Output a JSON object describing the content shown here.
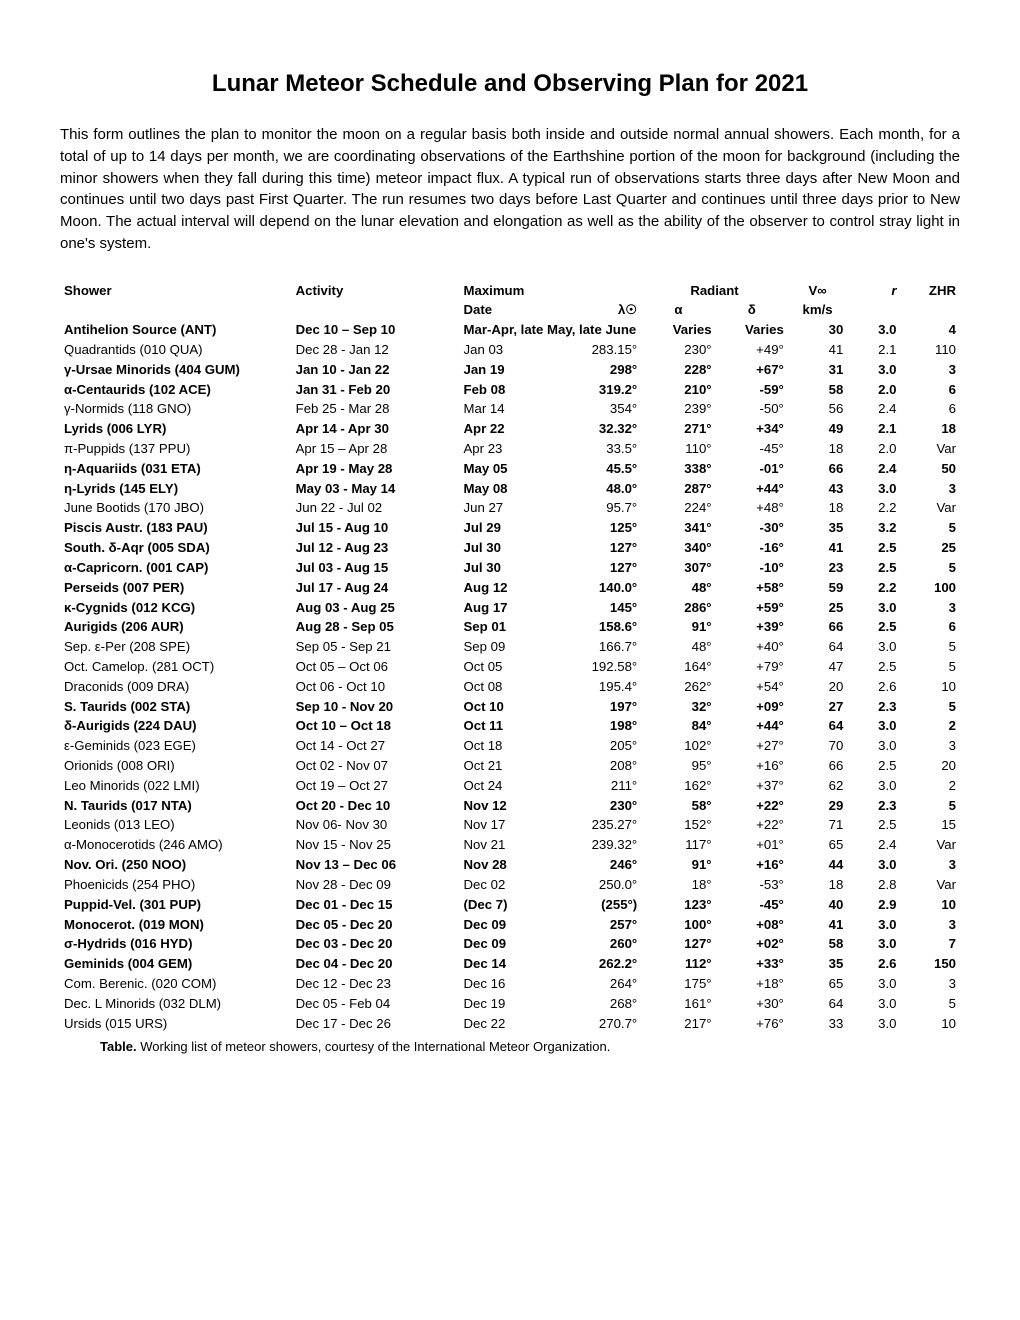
{
  "title": "Lunar Meteor Schedule and Observing Plan for 2021",
  "intro": "This form outlines the plan to monitor the moon on a regular basis both inside and outside normal annual showers. Each month, for a total of up to 14 days per month, we are coordinating observations of the Earthshine portion of the moon for background (including the minor showers when they fall during this time) meteor impact flux. A typical run of observations starts three days after New Moon and continues until two days past First Quarter. The run resumes two days before Last Quarter and continues until three days prior to New Moon. The actual interval will depend on the lunar elevation and elongation as well as the ability of the observer to control stray light in one's system.",
  "header": {
    "shower": "Shower",
    "activity": "Activity",
    "maximum": "Maximum",
    "max_date": "Date",
    "max_lambda": "λ☉",
    "radiant": "Radiant",
    "alpha": "α",
    "delta": "δ",
    "vinf": "V∞",
    "vinf_unit": "km/s",
    "r": "r",
    "zhr": "ZHR"
  },
  "caption_bold": "Table.",
  "caption_rest": " Working list of meteor showers, courtesy of the International Meteor Organization.",
  "rows": [
    {
      "bold": true,
      "shower": "Antihelion Source (ANT)",
      "activity": "Dec 10 – Sep 10",
      "maxdate": "Mar-Apr, late May, late June",
      "lambda": "",
      "alpha": "Varies",
      "delta": "Varies",
      "vinf": "30",
      "r": "3.0",
      "zhr": "4",
      "span": true
    },
    {
      "bold": false,
      "shower": "Quadrantids (010 QUA)",
      "activity": "Dec 28 - Jan 12",
      "maxdate": "Jan 03",
      "lambda": "283.15°",
      "alpha": "230°",
      "delta": "+49°",
      "vinf": "41",
      "r": "2.1",
      "zhr": "110"
    },
    {
      "bold": true,
      "shower": "γ-Ursae Minorids (404 GUM)",
      "activity": "Jan 10 - Jan 22",
      "maxdate": "Jan 19",
      "lambda": "298°",
      "alpha": "228°",
      "delta": "+67°",
      "vinf": "31",
      "r": "3.0",
      "zhr": "3"
    },
    {
      "bold": true,
      "shower": "α-Centaurids (102 ACE)",
      "activity": "Jan 31 - Feb 20",
      "maxdate": "Feb 08",
      "lambda": "319.2°",
      "alpha": "210°",
      "delta": "-59°",
      "vinf": "58",
      "r": "2.0",
      "zhr": "6"
    },
    {
      "bold": false,
      "shower": "γ-Normids (118 GNO)",
      "activity": "Feb 25 - Mar 28",
      "maxdate": "Mar 14",
      "lambda": "354°",
      "alpha": "239°",
      "delta": "-50°",
      "vinf": "56",
      "r": "2.4",
      "zhr": "6"
    },
    {
      "bold": true,
      "shower": "Lyrids (006 LYR)",
      "activity": "Apr 14 - Apr 30",
      "maxdate": "Apr 22",
      "lambda": "32.32°",
      "alpha": "271°",
      "delta": "+34°",
      "vinf": "49",
      "r": "2.1",
      "zhr": "18"
    },
    {
      "bold": false,
      "shower": "π-Puppids (137 PPU)",
      "activity": "Apr 15 – Apr 28",
      "maxdate": "Apr 23",
      "lambda": "33.5°",
      "alpha": "110°",
      "delta": "-45°",
      "vinf": "18",
      "r": "2.0",
      "zhr": "Var"
    },
    {
      "bold": true,
      "shower": "η-Aquariids (031 ETA)",
      "activity": "Apr 19 - May 28",
      "maxdate": "May 05",
      "lambda": "45.5°",
      "alpha": "338°",
      "delta": "-01°",
      "vinf": "66",
      "r": "2.4",
      "zhr": "50"
    },
    {
      "bold": true,
      "shower": "η-Lyrids (145 ELY)",
      "activity": "May 03 - May 14",
      "maxdate": "May 08",
      "lambda": "48.0°",
      "alpha": "287°",
      "delta": "+44°",
      "vinf": "43",
      "r": "3.0",
      "zhr": "3"
    },
    {
      "bold": false,
      "shower": "June Bootids (170 JBO)",
      "activity": "Jun 22 - Jul 02",
      "maxdate": "Jun 27",
      "lambda": "95.7°",
      "alpha": "224°",
      "delta": "+48°",
      "vinf": "18",
      "r": "2.2",
      "zhr": "Var"
    },
    {
      "bold": true,
      "shower": "Piscis Austr. (183 PAU)",
      "activity": "Jul 15 - Aug 10",
      "maxdate": "Jul 29",
      "lambda": "125°",
      "alpha": "341°",
      "delta": "-30°",
      "vinf": "35",
      "r": "3.2",
      "zhr": "5"
    },
    {
      "bold": true,
      "shower": "South. δ-Aqr (005 SDA)",
      "activity": "Jul 12 - Aug 23",
      "maxdate": "Jul 30",
      "lambda": "127°",
      "alpha": "340°",
      "delta": "-16°",
      "vinf": "41",
      "r": "2.5",
      "zhr": "25"
    },
    {
      "bold": true,
      "shower": "α-Capricorn. (001 CAP)",
      "activity": "Jul 03 - Aug 15",
      "maxdate": "Jul 30",
      "lambda": "127°",
      "alpha": "307°",
      "delta": "-10°",
      "vinf": "23",
      "r": "2.5",
      "zhr": "5"
    },
    {
      "bold": true,
      "shower": "Perseids (007 PER)",
      "activity": "Jul 17 - Aug 24",
      "maxdate": "Aug 12",
      "lambda": "140.0°",
      "alpha": "48°",
      "delta": "+58°",
      "vinf": "59",
      "r": "2.2",
      "zhr": "100"
    },
    {
      "bold": true,
      "shower": "κ-Cygnids (012 KCG)",
      "activity": "Aug 03 - Aug 25",
      "maxdate": "Aug 17",
      "lambda": "145°",
      "alpha": "286°",
      "delta": "+59°",
      "vinf": "25",
      "r": "3.0",
      "zhr": "3"
    },
    {
      "bold": true,
      "shower": "Aurigids (206 AUR)",
      "activity": "Aug 28 - Sep 05",
      "maxdate": "Sep 01",
      "lambda": "158.6°",
      "alpha": "91°",
      "delta": "+39°",
      "vinf": "66",
      "r": "2.5",
      "zhr": "6"
    },
    {
      "bold": false,
      "shower": "Sep. ε-Per (208 SPE)",
      "activity": "Sep 05 - Sep 21",
      "maxdate": "Sep 09",
      "lambda": "166.7°",
      "alpha": "48°",
      "delta": "+40°",
      "vinf": "64",
      "r": "3.0",
      "zhr": "5"
    },
    {
      "bold": false,
      "shower": "Oct. Camelop. (281 OCT)",
      "activity": "Oct 05 – Oct 06",
      "maxdate": "Oct 05",
      "lambda": "192.58°",
      "alpha": "164°",
      "delta": "+79°",
      "vinf": "47",
      "r": "2.5",
      "zhr": "5"
    },
    {
      "bold": false,
      "shower": "Draconids (009 DRA)",
      "activity": "Oct 06 - Oct 10",
      "maxdate": "Oct 08",
      "lambda": "195.4°",
      "alpha": "262°",
      "delta": "+54°",
      "vinf": "20",
      "r": "2.6",
      "zhr": "10"
    },
    {
      "bold": true,
      "shower": "S. Taurids (002 STA)",
      "activity": "Sep 10 - Nov 20",
      "maxdate": "Oct 10",
      "lambda": "197°",
      "alpha": "32°",
      "delta": "+09°",
      "vinf": "27",
      "r": "2.3",
      "zhr": "5"
    },
    {
      "bold": true,
      "shower": "δ-Aurigids (224 DAU)",
      "activity": "Oct 10 – Oct 18",
      "maxdate": "Oct 11",
      "lambda": "198°",
      "alpha": "84°",
      "delta": "+44°",
      "vinf": "64",
      "r": "3.0",
      "zhr": "2"
    },
    {
      "bold": false,
      "shower": "ε-Geminids (023 EGE)",
      "activity": "Oct 14 - Oct 27",
      "maxdate": "Oct 18",
      "lambda": "205°",
      "alpha": "102°",
      "delta": "+27°",
      "vinf": "70",
      "r": "3.0",
      "zhr": "3"
    },
    {
      "bold": false,
      "shower": "Orionids (008 ORI)",
      "activity": "Oct 02 - Nov 07",
      "maxdate": "Oct 21",
      "lambda": "208°",
      "alpha": "95°",
      "delta": "+16°",
      "vinf": "66",
      "r": "2.5",
      "zhr": "20"
    },
    {
      "bold": false,
      "shower": "Leo Minorids (022 LMI)",
      "activity": "Oct 19 – Oct 27",
      "maxdate": "Oct 24",
      "lambda": "211°",
      "alpha": "162°",
      "delta": "+37°",
      "vinf": "62",
      "r": "3.0",
      "zhr": "2"
    },
    {
      "bold": true,
      "shower": "N. Taurids (017 NTA)",
      "activity": "Oct 20 - Dec 10",
      "maxdate": "Nov 12",
      "lambda": "230°",
      "alpha": "58°",
      "delta": "+22°",
      "vinf": "29",
      "r": "2.3",
      "zhr": "5"
    },
    {
      "bold": false,
      "shower": "Leonids (013 LEO)",
      "activity": "Nov 06- Nov 30",
      "maxdate": "Nov 17",
      "lambda": "235.27°",
      "alpha": "152°",
      "delta": "+22°",
      "vinf": "71",
      "r": "2.5",
      "zhr": "15"
    },
    {
      "bold": false,
      "shower": "α-Monocerotids (246 AMO)",
      "activity": "Nov 15 - Nov 25",
      "maxdate": "Nov 21",
      "lambda": "239.32°",
      "alpha": "117°",
      "delta": "+01°",
      "vinf": "65",
      "r": "2.4",
      "zhr": "Var"
    },
    {
      "bold": true,
      "shower": "Nov. Ori. (250 NOO)",
      "activity": "Nov 13 – Dec 06",
      "maxdate": "Nov 28",
      "lambda": "246°",
      "alpha": "91°",
      "delta": "+16°",
      "vinf": "44",
      "r": "3.0",
      "zhr": "3"
    },
    {
      "bold": false,
      "shower": "Phoenicids (254 PHO)",
      "activity": "Nov 28 - Dec 09",
      "maxdate": "Dec 02",
      "lambda": "250.0°",
      "alpha": "18°",
      "delta": "-53°",
      "vinf": "18",
      "r": "2.8",
      "zhr": "Var"
    },
    {
      "bold": true,
      "shower": "Puppid-Vel. (301 PUP)",
      "activity": "Dec 01 - Dec 15",
      "maxdate": "(Dec 7)",
      "lambda": "(255°)",
      "alpha": "123°",
      "delta": "-45°",
      "vinf": "40",
      "r": "2.9",
      "zhr": "10"
    },
    {
      "bold": true,
      "shower": "Monocerot. (019 MON)",
      "activity": "Dec 05 - Dec 20",
      "maxdate": "Dec 09",
      "lambda": "257°",
      "alpha": "100°",
      "delta": "+08°",
      "vinf": "41",
      "r": "3.0",
      "zhr": "3"
    },
    {
      "bold": true,
      "shower": "σ-Hydrids (016 HYD)",
      "activity": "Dec 03 - Dec 20",
      "maxdate": "Dec 09",
      "lambda": "260°",
      "alpha": "127°",
      "delta": "+02°",
      "vinf": "58",
      "r": "3.0",
      "zhr": "7"
    },
    {
      "bold": true,
      "shower": "Geminids (004 GEM)",
      "activity": "Dec 04 - Dec 20",
      "maxdate": "Dec 14",
      "lambda": "262.2°",
      "alpha": "112°",
      "delta": "+33°",
      "vinf": "35",
      "r": "2.6",
      "zhr": "150"
    },
    {
      "bold": false,
      "shower": "Com. Berenic. (020 COM)",
      "activity": "Dec 12 - Dec 23",
      "maxdate": "Dec 16",
      "lambda": "264°",
      "alpha": "175°",
      "delta": "+18°",
      "vinf": "65",
      "r": "3.0",
      "zhr": "3"
    },
    {
      "bold": false,
      "shower": "Dec. L Minorids (032 DLM)",
      "activity": "Dec 05 - Feb 04",
      "maxdate": "Dec 19",
      "lambda": "268°",
      "alpha": "161°",
      "delta": "+30°",
      "vinf": "64",
      "r": "3.0",
      "zhr": "5"
    },
    {
      "bold": false,
      "shower": "Ursids (015 URS)",
      "activity": "Dec 17 - Dec 26",
      "maxdate": "Dec 22",
      "lambda": "270.7°",
      "alpha": "217°",
      "delta": "+76°",
      "vinf": "33",
      "r": "3.0",
      "zhr": "10"
    }
  ]
}
